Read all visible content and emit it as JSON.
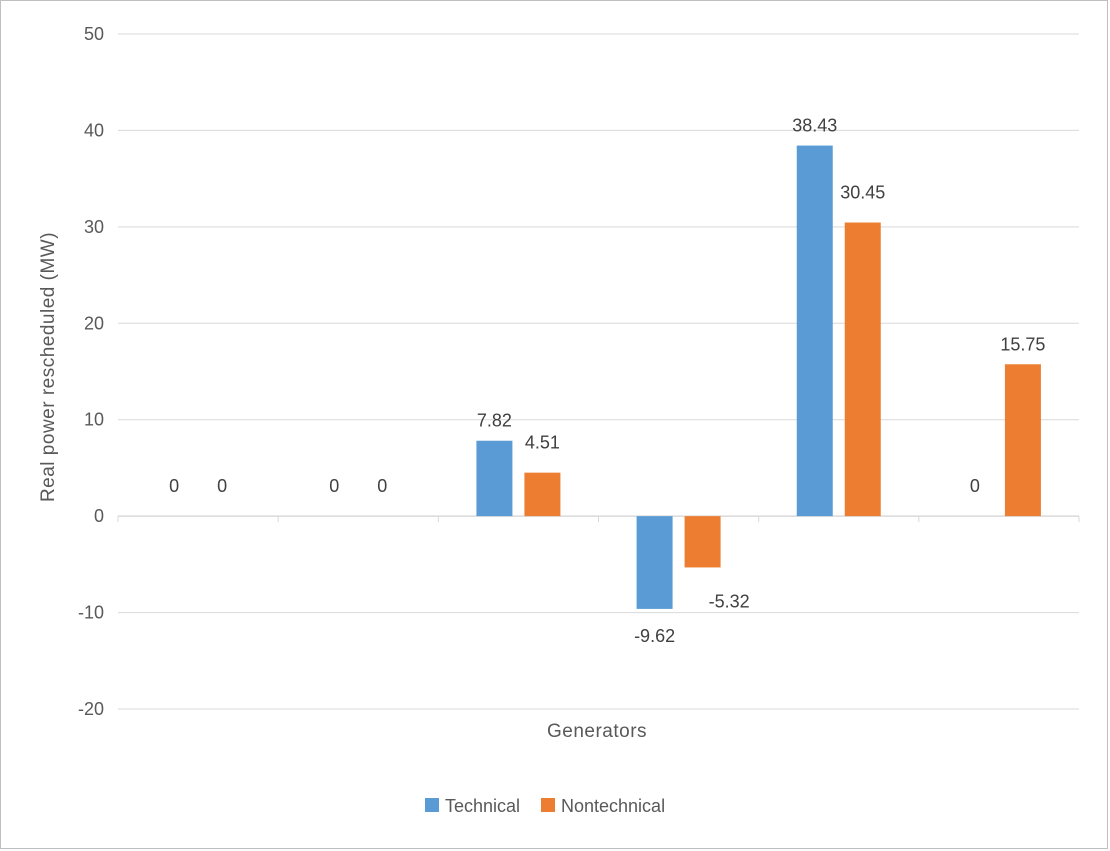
{
  "chart_data": {
    "type": "bar",
    "title": "",
    "xlabel": "Generators",
    "ylabel": "Real power rescheduled (MW)",
    "ylim": [
      -20,
      50
    ],
    "yticks": [
      50,
      40,
      30,
      20,
      10,
      0,
      -10,
      -20
    ],
    "grid": true,
    "legend_position": "bottom",
    "categories": [
      "",
      "",
      "",
      "",
      "",
      ""
    ],
    "series": [
      {
        "name": "Technical",
        "color": "#5b9bd5",
        "values": [
          0,
          0,
          7.82,
          -9.62,
          38.43,
          0
        ],
        "labels": [
          "0",
          "0",
          "7.82",
          "-9.62",
          "38.43",
          "0"
        ]
      },
      {
        "name": "Nontechnical",
        "color": "#ed7d31",
        "values": [
          0,
          0,
          4.51,
          -5.32,
          30.45,
          15.75
        ],
        "labels": [
          "0",
          "0",
          "4.51",
          "-5.32",
          "30.45",
          "15.75"
        ]
      }
    ]
  }
}
